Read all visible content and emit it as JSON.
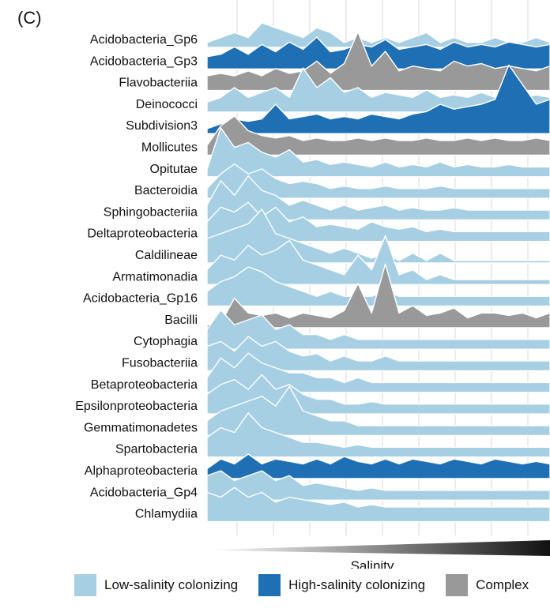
{
  "panel_label": "(C)",
  "colors": {
    "low": "#a6cfe3",
    "high": "#1f6fb4",
    "complex": "#999999",
    "grid": "#d9d9d9",
    "gradient_start": "#ffffff",
    "gradient_end": "#111111"
  },
  "chart_data": {
    "type": "ridgeline",
    "xlabel": "Salinity",
    "ylabel": "",
    "title": "",
    "x_range": [
      0,
      1
    ],
    "grid": true,
    "legend": {
      "position": "bottom",
      "entries": [
        {
          "key": "low",
          "label": "Low-salinity colonizing"
        },
        {
          "key": "high",
          "label": "High-salinity colonizing"
        },
        {
          "key": "complex",
          "label": "Complex"
        }
      ]
    },
    "x": [
      0.0,
      0.04,
      0.08,
      0.12,
      0.16,
      0.2,
      0.24,
      0.28,
      0.32,
      0.36,
      0.4,
      0.44,
      0.48,
      0.52,
      0.56,
      0.6,
      0.64,
      0.68,
      0.72,
      0.76,
      0.8,
      0.84,
      0.88,
      0.92,
      0.96,
      1.0
    ],
    "series": [
      {
        "name": "Acidobacteria_Gp6",
        "group": "low",
        "values": [
          0.1,
          0.2,
          0.3,
          0.2,
          0.5,
          0.4,
          0.3,
          0.2,
          0.4,
          0.3,
          0.1,
          0.2,
          0.1,
          0.2,
          0.1,
          0.2,
          0.3,
          0.1,
          0.2,
          0.1,
          0.1,
          0.2,
          0.1,
          0.1,
          0.2,
          0.1
        ]
      },
      {
        "name": "Acidobacteria_Gp3",
        "group": "high",
        "values": [
          0.25,
          0.3,
          0.45,
          0.3,
          0.5,
          0.35,
          0.55,
          0.4,
          0.65,
          0.35,
          0.4,
          0.5,
          0.45,
          0.6,
          0.4,
          0.45,
          0.5,
          0.4,
          0.55,
          0.45,
          0.5,
          0.45,
          0.55,
          0.5,
          0.45,
          0.5
        ]
      },
      {
        "name": "Flavobacteriia",
        "group": "complex",
        "values": [
          0.3,
          0.35,
          0.3,
          0.4,
          0.3,
          0.45,
          0.35,
          0.4,
          0.6,
          0.35,
          0.55,
          1.2,
          0.5,
          0.8,
          0.4,
          0.5,
          0.45,
          0.4,
          0.6,
          0.5,
          0.55,
          0.45,
          0.5,
          0.45,
          0.4,
          0.5
        ]
      },
      {
        "name": "Deinococci",
        "group": "low",
        "values": [
          0.2,
          0.3,
          0.5,
          0.3,
          0.4,
          0.5,
          0.3,
          0.9,
          0.5,
          0.7,
          0.4,
          0.5,
          0.3,
          0.4,
          0.35,
          0.3,
          0.45,
          0.3,
          0.35,
          0.3,
          0.4,
          0.3,
          0.35,
          0.3,
          0.35,
          0.3
        ]
      },
      {
        "name": "Subdivision3",
        "group": "high",
        "values": [
          0.1,
          0.2,
          0.3,
          0.25,
          0.3,
          0.6,
          0.3,
          0.35,
          0.4,
          0.3,
          0.35,
          0.3,
          0.4,
          0.35,
          0.3,
          0.4,
          0.45,
          0.6,
          0.5,
          0.55,
          0.6,
          0.7,
          1.4,
          1.0,
          0.6,
          0.7
        ]
      },
      {
        "name": "Mollicutes",
        "group": "complex",
        "values": [
          0.2,
          0.6,
          0.8,
          0.5,
          0.4,
          0.35,
          0.4,
          0.3,
          0.35,
          0.3,
          0.3,
          0.35,
          0.3,
          0.35,
          0.3,
          0.3,
          0.35,
          0.3,
          0.3,
          0.35,
          0.3,
          0.35,
          0.3,
          0.3,
          0.35,
          0.3
        ]
      },
      {
        "name": "Opitutae",
        "group": "low",
        "values": [
          0.15,
          1.0,
          0.6,
          0.7,
          0.5,
          0.4,
          0.55,
          0.3,
          0.35,
          0.25,
          0.3,
          0.25,
          0.2,
          0.3,
          0.2,
          0.25,
          0.2,
          0.3,
          0.2,
          0.25,
          0.2,
          0.2,
          0.25,
          0.2,
          0.2,
          0.2
        ]
      },
      {
        "name": "Bacteroidia",
        "group": "low",
        "values": [
          0.2,
          0.5,
          0.7,
          0.5,
          0.6,
          0.4,
          0.3,
          0.35,
          0.3,
          0.2,
          0.25,
          0.2,
          0.2,
          0.25,
          0.2,
          0.2,
          0.2,
          0.25,
          0.2,
          0.2,
          0.2,
          0.2,
          0.2,
          0.2,
          0.2,
          0.2
        ]
      },
      {
        "name": "Sphingobacteriia",
        "group": "low",
        "values": [
          0.3,
          0.8,
          0.5,
          0.9,
          0.6,
          0.5,
          0.3,
          0.4,
          0.3,
          0.2,
          0.3,
          0.2,
          0.25,
          0.3,
          0.2,
          0.25,
          0.2,
          0.2,
          0.25,
          0.2,
          0.2,
          0.2,
          0.2,
          0.2,
          0.2,
          0.2
        ]
      },
      {
        "name": "Deltaproteobacteria",
        "group": "low",
        "values": [
          0.4,
          0.7,
          0.6,
          0.8,
          0.5,
          0.7,
          0.4,
          0.5,
          0.3,
          0.35,
          0.3,
          0.25,
          0.4,
          0.3,
          0.25,
          0.3,
          0.2,
          0.25,
          0.2,
          0.2,
          0.2,
          0.2,
          0.2,
          0.2,
          0.2,
          0.2
        ]
      },
      {
        "name": "Caldilineae",
        "group": "low",
        "values": [
          0.5,
          0.6,
          0.7,
          0.8,
          1.1,
          0.6,
          0.5,
          0.4,
          0.3,
          0.2,
          0.3,
          0.2,
          0.1,
          0.2,
          0.05,
          0.2,
          0.05,
          0.2,
          0.05,
          0.05,
          0.05,
          0.05,
          0.05,
          0.05,
          0.05,
          0.05
        ]
      },
      {
        "name": "Armatimonadia",
        "group": "low",
        "values": [
          0.3,
          0.6,
          0.5,
          0.8,
          0.6,
          0.7,
          0.9,
          0.5,
          0.4,
          0.3,
          0.2,
          0.6,
          0.3,
          1.0,
          0.2,
          0.3,
          0.1,
          0.2,
          0.1,
          0.1,
          0.1,
          0.1,
          0.1,
          0.1,
          0.1,
          0.1
        ]
      },
      {
        "name": "Acidobacteria_Gp16",
        "group": "low",
        "values": [
          0.3,
          0.5,
          0.6,
          0.8,
          0.7,
          0.5,
          0.4,
          0.3,
          0.2,
          0.3,
          0.2,
          0.2,
          0.2,
          0.3,
          0.2,
          0.2,
          0.2,
          0.2,
          0.2,
          0.2,
          0.2,
          0.2,
          0.2,
          0.2,
          0.2,
          0.2
        ]
      },
      {
        "name": "Bacilli",
        "group": "complex",
        "values": [
          0.05,
          0.1,
          0.6,
          0.3,
          0.25,
          0.3,
          0.2,
          0.3,
          0.25,
          0.2,
          0.35,
          0.9,
          0.3,
          1.3,
          0.3,
          0.45,
          0.25,
          0.3,
          0.4,
          0.2,
          0.3,
          0.3,
          0.25,
          0.3,
          0.2,
          0.3
        ]
      },
      {
        "name": "Cytophagia",
        "group": "low",
        "values": [
          0.4,
          0.8,
          0.5,
          0.6,
          0.7,
          0.4,
          0.5,
          0.3,
          0.3,
          0.2,
          0.3,
          0.2,
          0.2,
          0.2,
          0.2,
          0.2,
          0.2,
          0.2,
          0.2,
          0.2,
          0.2,
          0.2,
          0.2,
          0.2,
          0.2,
          0.2
        ]
      },
      {
        "name": "Fusobacteriia",
        "group": "low",
        "values": [
          0.5,
          0.6,
          0.4,
          0.7,
          0.5,
          0.6,
          0.4,
          0.3,
          0.35,
          0.2,
          0.3,
          0.2,
          0.2,
          0.3,
          0.2,
          0.2,
          0.2,
          0.2,
          0.2,
          0.2,
          0.2,
          0.2,
          0.2,
          0.2,
          0.2,
          0.2
        ]
      },
      {
        "name": "Betaproteobacteria",
        "group": "low",
        "values": [
          0.3,
          0.7,
          0.5,
          0.8,
          0.6,
          0.5,
          0.4,
          0.4,
          0.3,
          0.3,
          0.2,
          0.3,
          0.2,
          0.2,
          0.2,
          0.2,
          0.2,
          0.2,
          0.2,
          0.2,
          0.2,
          0.2,
          0.2,
          0.2,
          0.2,
          0.2
        ]
      },
      {
        "name": "Epsilonproteobacteria",
        "group": "low",
        "values": [
          0.4,
          0.6,
          0.7,
          0.5,
          0.8,
          0.5,
          0.6,
          0.4,
          0.3,
          0.3,
          0.2,
          0.2,
          0.25,
          0.2,
          0.2,
          0.2,
          0.2,
          0.2,
          0.2,
          0.2,
          0.2,
          0.2,
          0.2,
          0.2,
          0.2,
          0.2
        ]
      },
      {
        "name": "Gemmatimonadetes",
        "group": "low",
        "values": [
          0.3,
          0.5,
          0.6,
          0.7,
          0.8,
          0.6,
          1.0,
          0.5,
          0.4,
          0.3,
          0.3,
          0.2,
          0.2,
          0.2,
          0.2,
          0.2,
          0.2,
          0.2,
          0.2,
          0.2,
          0.2,
          0.2,
          0.2,
          0.2,
          0.2,
          0.2
        ]
      },
      {
        "name": "Spartobacteria",
        "group": "low",
        "values": [
          0.4,
          0.6,
          0.5,
          0.9,
          0.6,
          0.5,
          0.4,
          0.3,
          0.3,
          0.25,
          0.2,
          0.25,
          0.2,
          0.2,
          0.2,
          0.2,
          0.2,
          0.2,
          0.2,
          0.2,
          0.2,
          0.2,
          0.2,
          0.2,
          0.2,
          0.2
        ]
      },
      {
        "name": "Alphaproteobacteria",
        "group": "high",
        "values": [
          0.2,
          0.4,
          0.3,
          0.5,
          0.3,
          0.4,
          0.35,
          0.3,
          0.4,
          0.3,
          0.45,
          0.35,
          0.3,
          0.4,
          0.3,
          0.4,
          0.35,
          0.3,
          0.4,
          0.35,
          0.3,
          0.4,
          0.35,
          0.3,
          0.35,
          0.3
        ]
      },
      {
        "name": "Acidobacteria_Gp4",
        "group": "low",
        "values": [
          0.5,
          0.6,
          0.4,
          0.5,
          0.6,
          0.4,
          0.5,
          0.3,
          0.35,
          0.3,
          0.25,
          0.2,
          0.25,
          0.2,
          0.2,
          0.2,
          0.2,
          0.2,
          0.2,
          0.2,
          0.2,
          0.2,
          0.2,
          0.2,
          0.2,
          0.2
        ]
      },
      {
        "name": "Chlamydiia",
        "group": "low",
        "values": [
          0.6,
          0.5,
          0.7,
          0.5,
          0.6,
          0.4,
          0.5,
          0.45,
          0.4,
          0.35,
          0.4,
          0.3,
          0.35,
          0.3,
          0.3,
          0.3,
          0.3,
          0.3,
          0.3,
          0.3,
          0.3,
          0.3,
          0.3,
          0.3,
          0.3,
          0.3
        ]
      }
    ]
  }
}
